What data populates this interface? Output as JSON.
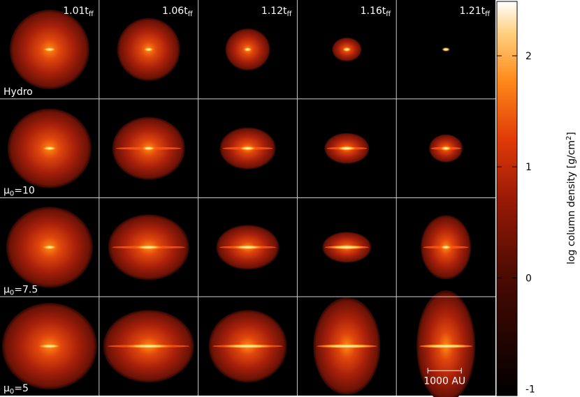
{
  "columns": [
    {
      "main": "1.01t",
      "sub": "ff"
    },
    {
      "main": "1.06t",
      "sub": "ff"
    },
    {
      "main": "1.12t",
      "sub": "ff"
    },
    {
      "main": "1.16t",
      "sub": "ff"
    },
    {
      "main": "1.21t",
      "sub": "ff"
    }
  ],
  "rows": [
    {
      "main": "Hydro"
    },
    {
      "main": "μ",
      "sub": "0",
      "rest": "=10"
    },
    {
      "main": "μ",
      "sub": "0",
      "rest": "=7.5"
    },
    {
      "main": "μ",
      "sub": "0",
      "rest": "=5"
    }
  ],
  "scale_bar": "1000 AU",
  "colorbar": {
    "label": {
      "main": "log column density [g/cm",
      "sup": "2",
      "rest": "]"
    },
    "lim": [
      -1.06,
      2.49
    ],
    "ticks": [
      {
        "value": -1,
        "label": "-1"
      },
      0,
      1,
      2
    ]
  }
}
